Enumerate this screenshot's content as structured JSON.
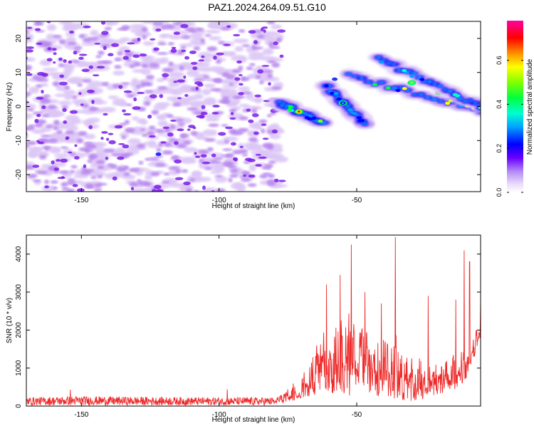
{
  "title": "PAZ1.2024.264.09.51.G10",
  "colors": {
    "snr_line": "#ee2a2a",
    "speckle_light": "#dcc6f6",
    "speckle_mid": "#b887ee",
    "speckle_dark": "#7a1fe8",
    "axes": "#000000"
  },
  "chart_data": [
    {
      "type": "heatmap",
      "title": "PAZ1.2024.264.09.51.G10",
      "xlabel": "Height of straight line (km)",
      "ylabel": "Frequency (Hz)",
      "xlim": [
        -170,
        -5
      ],
      "ylim": [
        -25,
        25
      ],
      "xticks": [
        -150,
        -100,
        -50
      ],
      "yticks": [
        -20,
        -10,
        0,
        10,
        20
      ],
      "noise_region_x": [
        -170,
        -78
      ],
      "colorbar": {
        "label": "Normalized spectral amplitude",
        "range": [
          0.0,
          0.78
        ],
        "ticks": [
          0.0,
          0.2,
          0.4,
          0.6
        ],
        "tick_labels": [
          "0.0",
          "0.2",
          "0.4",
          "0.6"
        ],
        "colormap": "gist_rainbow_reversed"
      },
      "ridges": [
        {
          "x_start": -78,
          "x_end": -62,
          "f_start": 1.0,
          "f_end": -5.0,
          "peak_amplitude": 0.72,
          "peak_x": -71,
          "peak_f": -1.5
        },
        {
          "x_start": -61,
          "x_end": -47,
          "f_start": 6.0,
          "f_end": -5.0,
          "peak_amplitude": 0.35,
          "peak_x": -55,
          "peak_f": 1.0
        },
        {
          "x_start": -53,
          "x_end": -5,
          "f_start": 9.0,
          "f_end": -1.0,
          "peak_amplitude": 0.75,
          "peak_x": -20,
          "peak_f": 4.0
        },
        {
          "x_start": -42,
          "x_end": -5,
          "f_start": 14.0,
          "f_end": 0.0,
          "peak_amplitude": 0.5,
          "peak_x": -30,
          "peak_f": 7.0
        }
      ]
    },
    {
      "type": "line",
      "xlabel": "Height of straight line (km)",
      "ylabel": "SNR (10 * v/v)",
      "xlim": [
        -170,
        -5
      ],
      "ylim": [
        0,
        4500
      ],
      "xticks": [
        -150,
        -100,
        -50
      ],
      "yticks": [
        0,
        1000,
        2000,
        3000,
        4000
      ],
      "series": [
        {
          "envelope": [
            {
              "x": -170,
              "low": 20,
              "high": 230
            },
            {
              "x": -150,
              "low": 20,
              "high": 260
            },
            {
              "x": -125,
              "low": 20,
              "high": 240
            },
            {
              "x": -100,
              "low": 20,
              "high": 230
            },
            {
              "x": -80,
              "low": 20,
              "high": 230
            },
            {
              "x": -75,
              "low": 100,
              "high": 600
            },
            {
              "x": -70,
              "low": 200,
              "high": 900
            },
            {
              "x": -65,
              "low": 300,
              "high": 1800
            },
            {
              "x": -60,
              "low": 300,
              "high": 2700
            },
            {
              "x": -55,
              "low": 200,
              "high": 3000
            },
            {
              "x": -50,
              "low": 300,
              "high": 2900
            },
            {
              "x": -45,
              "low": 300,
              "high": 2500
            },
            {
              "x": -40,
              "low": 200,
              "high": 2300
            },
            {
              "x": -35,
              "low": 200,
              "high": 2300
            },
            {
              "x": -30,
              "low": 100,
              "high": 1900
            },
            {
              "x": -25,
              "low": 200,
              "high": 1600
            },
            {
              "x": -20,
              "low": 300,
              "high": 1600
            },
            {
              "x": -15,
              "low": 400,
              "high": 1700
            },
            {
              "x": -10,
              "low": 700,
              "high": 1800
            },
            {
              "x": -5,
              "low": 1700,
              "high": 2500
            }
          ],
          "spikes": [
            {
              "x": -97,
              "y": 440
            },
            {
              "x": -154,
              "y": 430
            },
            {
              "x": -61,
              "y": 3200
            },
            {
              "x": -56,
              "y": 3450
            },
            {
              "x": -52,
              "y": 4250
            },
            {
              "x": -47,
              "y": 3000
            },
            {
              "x": -41,
              "y": 2700
            },
            {
              "x": -36,
              "y": 4450
            },
            {
              "x": -24,
              "y": 2900
            },
            {
              "x": -14,
              "y": 2800
            },
            {
              "x": -11,
              "y": 4100
            },
            {
              "x": -9,
              "y": 3800
            },
            {
              "x": -5,
              "y": 2800
            }
          ]
        }
      ]
    }
  ]
}
